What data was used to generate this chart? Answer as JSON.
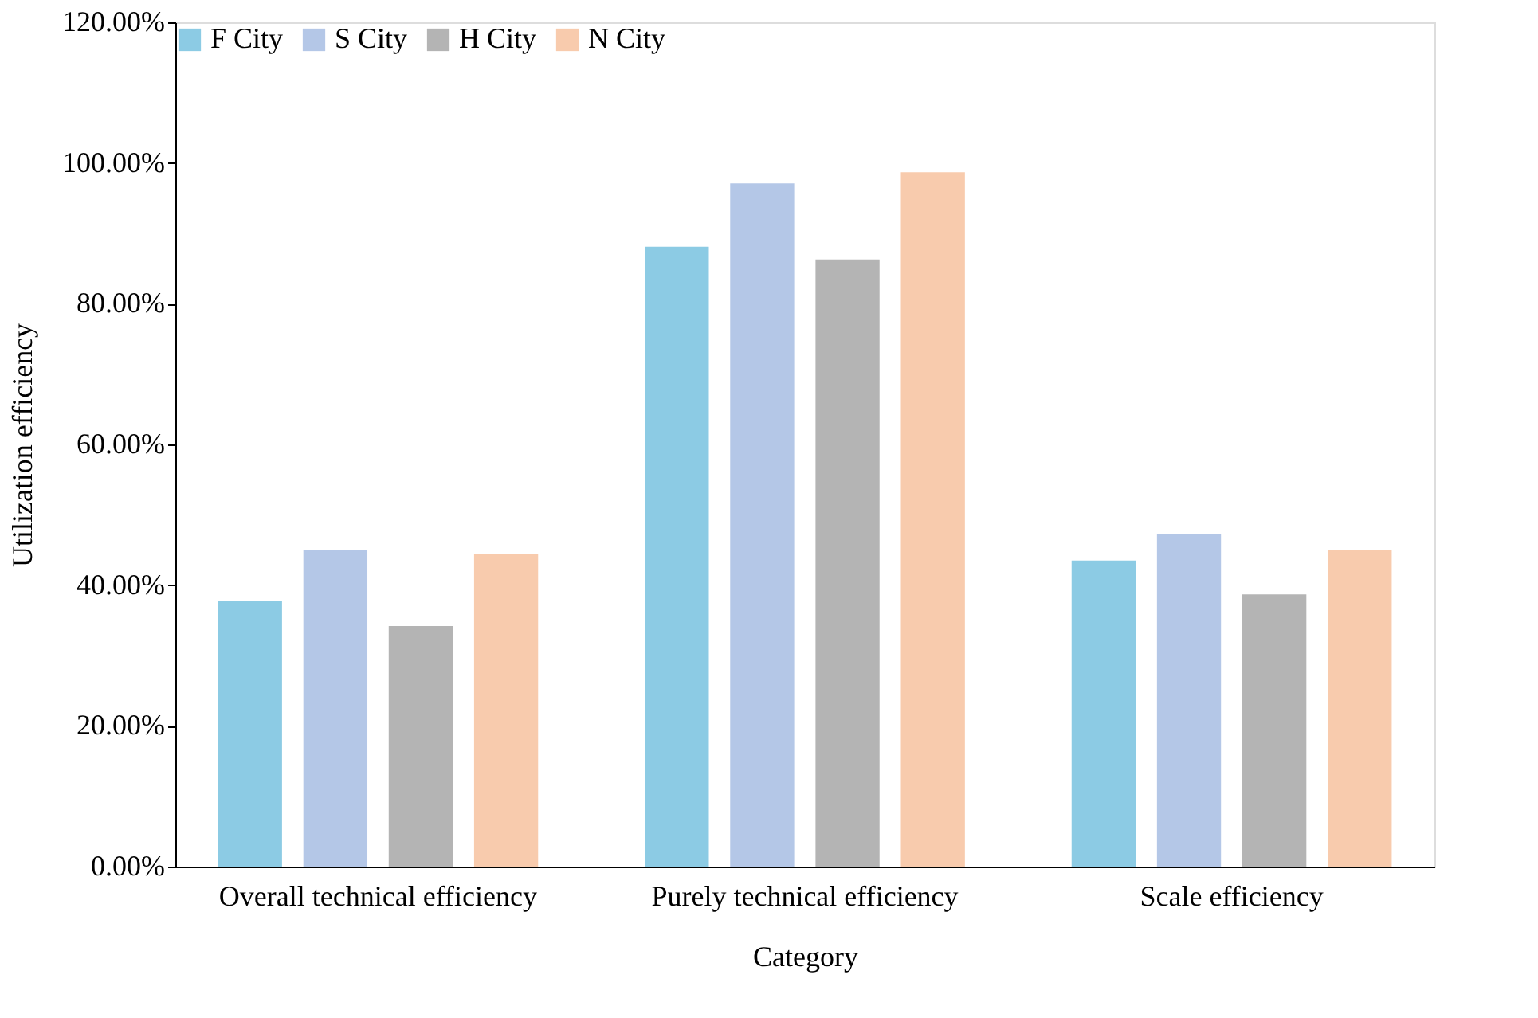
{
  "chart_data": {
    "type": "bar",
    "xlabel": "Category",
    "ylabel": "Utilization efficiency",
    "categories": [
      "Overall technical efficiency",
      "Purely technical efficiency",
      "Scale efficiency"
    ],
    "series": [
      {
        "name": "F City",
        "color": "#8ccbe4",
        "values": [
          37.8,
          88.1,
          43.5
        ]
      },
      {
        "name": "S City",
        "color": "#b4c7e7",
        "values": [
          45.0,
          97.1,
          47.3
        ]
      },
      {
        "name": "H City",
        "color": "#b4b4b4",
        "values": [
          34.2,
          86.3,
          38.7
        ]
      },
      {
        "name": "N City",
        "color": "#f8cbad",
        "values": [
          44.4,
          98.7,
          45.0
        ]
      }
    ],
    "ylim": [
      0,
      120
    ],
    "yticks": [
      {
        "value": 0,
        "label": "0.00%"
      },
      {
        "value": 20,
        "label": "20.00%"
      },
      {
        "value": 40,
        "label": "40.00%"
      },
      {
        "value": 60,
        "label": "60.00%"
      },
      {
        "value": 80,
        "label": "80.00%"
      },
      {
        "value": 100,
        "label": "100.00%"
      },
      {
        "value": 120,
        "label": "120.00%"
      }
    ],
    "grid": false,
    "legend": "top"
  }
}
